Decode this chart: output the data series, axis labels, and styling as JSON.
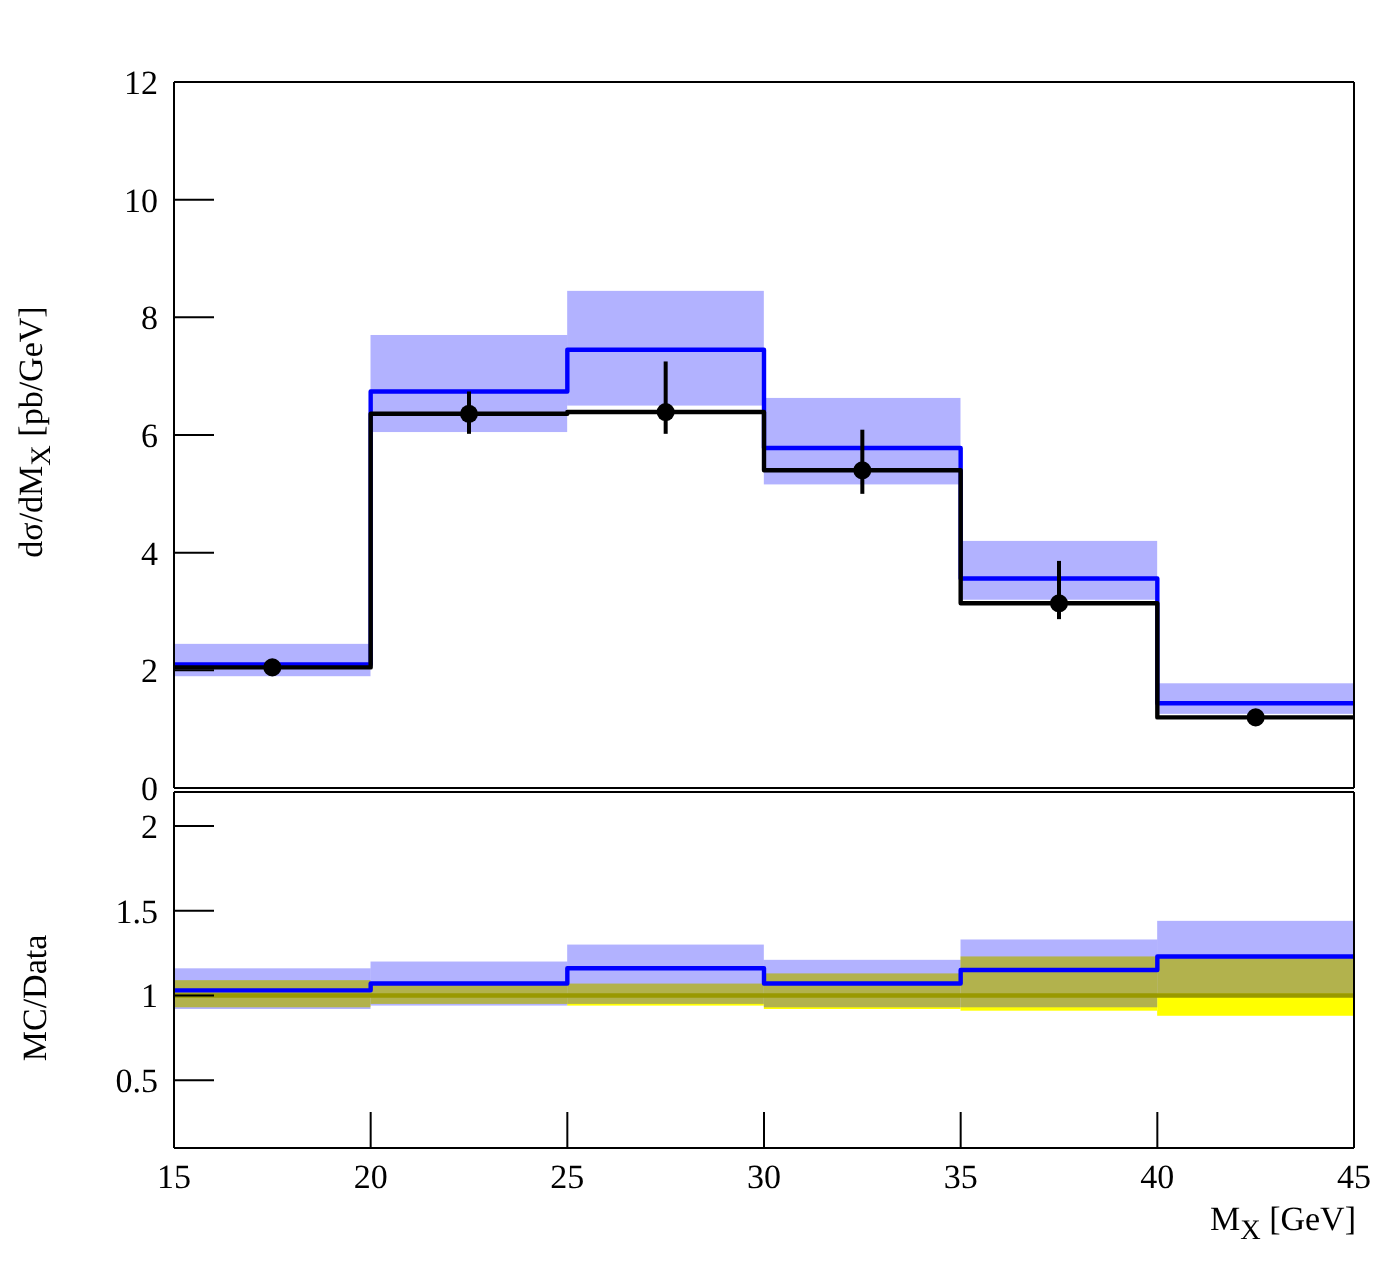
{
  "chart_data": [
    {
      "type": "histogram",
      "ylabel": "dσ/dM$_{X}$ [pb/GeV]",
      "bins": [
        15,
        20,
        25,
        30,
        35,
        40,
        45
      ],
      "xlim": [
        15,
        45
      ],
      "xticks": [
        15,
        20,
        25,
        30,
        35,
        40,
        45
      ],
      "ylim": [
        0,
        12
      ],
      "yticks": [
        0,
        2,
        4,
        6,
        8,
        10,
        12
      ],
      "tick_labels": "y",
      "series": [
        {
          "type": "bar",
          "color": "#0000ff",
          "x": [
            17.5,
            22.5,
            27.5,
            32.5,
            37.5,
            42.5
          ],
          "base": [
            1.9,
            6.05,
            6.5,
            5.16,
            3.2,
            1.26
          ],
          "values": [
            0.55,
            1.65,
            1.95,
            1.47,
            1.0,
            0.52
          ]
        },
        {
          "type": "histogram",
          "color": "#0000ff",
          "values": [
            2.1,
            6.74,
            7.45,
            5.78,
            3.56,
            1.44
          ]
        },
        {
          "type": "histogram",
          "color": "#000000",
          "values": [
            2.05,
            6.36,
            6.39,
            5.4,
            3.14,
            1.2
          ]
        },
        {
          "type": "scatter",
          "color": "#000000",
          "marker": "circle",
          "x": [
            17.5,
            22.5,
            27.5,
            32.5,
            37.5,
            42.5
          ],
          "values": [
            2.05,
            6.36,
            6.39,
            5.4,
            3.14,
            1.2
          ],
          "errors": [
            0.1,
            [
              6.02,
              6.74
            ],
            [
              6.02,
              7.25
            ],
            [
              5.0,
              6.09
            ],
            [
              2.87,
              3.86
            ],
            0.1
          ]
        }
      ]
    },
    {
      "type": "histogram",
      "xlabel": "M$_{X}$ [GeV]",
      "ylabel": "MC/Data",
      "bins": [
        15,
        20,
        25,
        30,
        35,
        40,
        45
      ],
      "xlim": [
        15,
        45
      ],
      "xticks": [
        15,
        20,
        25,
        30,
        35,
        40,
        45
      ],
      "ylim": [
        0.1,
        2.2
      ],
      "yticks": [
        0.5,
        1,
        1.5,
        2
      ],
      "series": [
        {
          "type": "bar",
          "color": "#ffff00",
          "x": [
            17.5,
            22.5,
            27.5,
            32.5,
            37.5,
            42.5
          ],
          "base": [
            0.93,
            0.95,
            0.94,
            0.92,
            0.91,
            0.88
          ],
          "values": [
            0.16,
            0.12,
            0.13,
            0.21,
            0.32,
            0.35
          ]
        },
        {
          "type": "bar",
          "color": "#0000ff",
          "x": [
            17.5,
            22.5,
            27.5,
            32.5,
            37.5,
            42.5
          ],
          "base": [
            0.92,
            0.94,
            0.95,
            0.93,
            0.93,
            1.01
          ],
          "values": [
            0.24,
            0.26,
            0.35,
            0.28,
            0.4,
            0.43
          ]
        },
        {
          "type": "histogram",
          "color": "#0000ff",
          "values": [
            1.03,
            1.07,
            1.16,
            1.07,
            1.15,
            1.23
          ]
        },
        {
          "type": "histogram",
          "color": "#999900",
          "values": [
            1,
            1,
            1,
            1,
            1,
            1
          ]
        }
      ]
    }
  ]
}
